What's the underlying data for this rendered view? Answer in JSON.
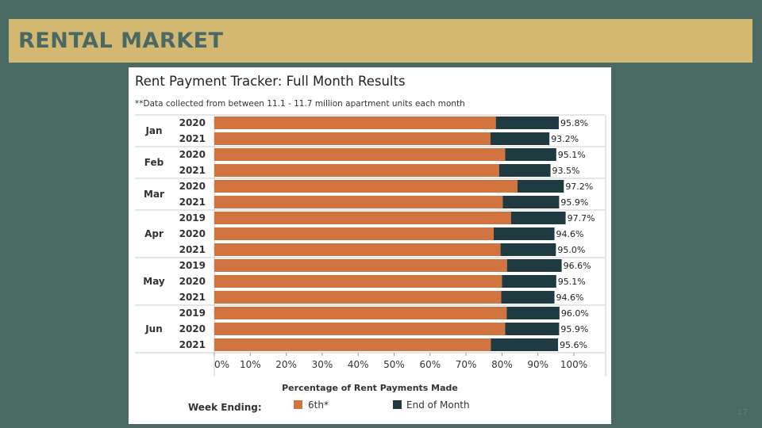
{
  "slide": {
    "banner_title": "RENTAL MARKET",
    "page_number": "17"
  },
  "colors": {
    "background": "#4a6963",
    "banner": "#d3b872",
    "sixth": "#d2743f",
    "end_of_month": "#1f3a40"
  },
  "chart_data": {
    "type": "bar",
    "orientation": "horizontal",
    "stacked": true,
    "title": "Rent Payment Tracker: Full Month Results",
    "subtitle": "**Data collected from between 11.1 - 11.7 million apartment units each month",
    "xlabel": "Percentage of Rent Payments Made",
    "xlim": [
      0,
      100
    ],
    "x_ticks": [
      "0%",
      "10%",
      "20%",
      "30%",
      "40%",
      "50%",
      "60%",
      "70%",
      "80%",
      "90%",
      "100%"
    ],
    "legend_title": "Week Ending:",
    "legend_position": "bottom",
    "series_names": [
      "6th*",
      "End of Month"
    ],
    "groups": [
      {
        "month": "Jan",
        "rows": [
          {
            "year": "2020",
            "sixth": 78.3,
            "end_of_month": 95.8,
            "label": "95.8%"
          },
          {
            "year": "2021",
            "sixth": 76.8,
            "end_of_month": 93.2,
            "label": "93.2%"
          }
        ]
      },
      {
        "month": "Feb",
        "rows": [
          {
            "year": "2020",
            "sixth": 80.9,
            "end_of_month": 95.1,
            "label": "95.1%"
          },
          {
            "year": "2021",
            "sixth": 79.2,
            "end_of_month": 93.5,
            "label": "93.5%"
          }
        ]
      },
      {
        "month": "Mar",
        "rows": [
          {
            "year": "2020",
            "sixth": 84.3,
            "end_of_month": 97.2,
            "label": "97.2%"
          },
          {
            "year": "2021",
            "sixth": 80.2,
            "end_of_month": 95.9,
            "label": "95.9%"
          }
        ]
      },
      {
        "month": "Apr",
        "rows": [
          {
            "year": "2019",
            "sixth": 82.5,
            "end_of_month": 97.7,
            "label": "97.7%"
          },
          {
            "year": "2020",
            "sixth": 77.7,
            "end_of_month": 94.6,
            "label": "94.6%"
          },
          {
            "year": "2021",
            "sixth": 79.6,
            "end_of_month": 95.0,
            "label": "95.0%"
          }
        ]
      },
      {
        "month": "May",
        "rows": [
          {
            "year": "2019",
            "sixth": 81.4,
            "end_of_month": 96.6,
            "label": "96.6%"
          },
          {
            "year": "2020",
            "sixth": 80.0,
            "end_of_month": 95.1,
            "label": "95.1%"
          },
          {
            "year": "2021",
            "sixth": 79.8,
            "end_of_month": 94.6,
            "label": "94.6%"
          }
        ]
      },
      {
        "month": "Jun",
        "rows": [
          {
            "year": "2019",
            "sixth": 81.3,
            "end_of_month": 96.0,
            "label": "96.0%"
          },
          {
            "year": "2020",
            "sixth": 80.9,
            "end_of_month": 95.9,
            "label": "95.9%"
          },
          {
            "year": "2021",
            "sixth": 76.9,
            "end_of_month": 95.6,
            "label": "95.6%"
          }
        ]
      }
    ]
  }
}
